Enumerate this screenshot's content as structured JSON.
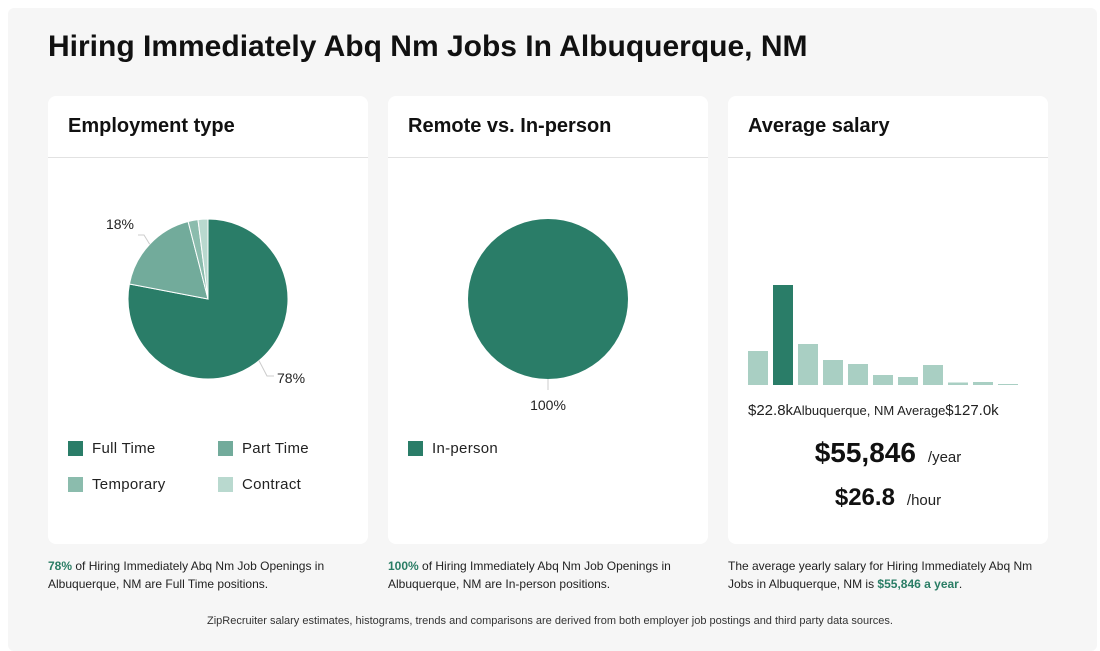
{
  "page": {
    "title": "Hiring Immediately Abq Nm Jobs In Albuquerque, NM"
  },
  "colors": {
    "primary": "#2a7d68",
    "part_time": "#72ab9b",
    "temporary": "#8bbcad",
    "contract": "#b9d9cf",
    "histogram_light": "#a9cfc3",
    "highlight_text": "#2a7d65"
  },
  "employment_card": {
    "title": "Employment type",
    "legend": [
      {
        "label": "Full Time",
        "color": "#2a7d68"
      },
      {
        "label": "Part Time",
        "color": "#72ab9b"
      },
      {
        "label": "Temporary",
        "color": "#8bbcad"
      },
      {
        "label": "Contract",
        "color": "#b9d9cf"
      }
    ],
    "caption": {
      "pct": "78%",
      "text": " of Hiring Immediately Abq Nm Job Openings in Albuquerque, NM are Full Time positions."
    }
  },
  "remote_card": {
    "title": "Remote vs. In-person",
    "legend": [
      {
        "label": "In-person",
        "color": "#2a7d68"
      }
    ],
    "caption": {
      "pct": "100%",
      "text": " of Hiring Immediately Abq Nm Job Openings in Albuquerque, NM are In-person positions."
    }
  },
  "salary_card": {
    "title": "Average salary",
    "min_label": "$22.8k",
    "mid_label": "Albuquerque, NM Average",
    "max_label": "$127.0k",
    "yearly_value": "$55,846",
    "yearly_unit": "/year",
    "hourly_value": "$26.8",
    "hourly_unit": "/hour",
    "caption": {
      "text": "The average yearly salary for Hiring Immediately Abq Nm Jobs in Albuquerque, NM is ",
      "highlight": "$55,846 a year",
      "end": "."
    }
  },
  "footer": {
    "note": "ZipRecruiter salary estimates, histograms, trends and comparisons are derived from both employer job postings and third party data sources."
  },
  "chart_data": [
    {
      "type": "pie",
      "title": "Employment type",
      "categories": [
        "Full Time",
        "Part Time",
        "Temporary",
        "Contract"
      ],
      "values": [
        78,
        18,
        2,
        2
      ],
      "labels_shown": [
        {
          "category": "Full Time",
          "text": "78%"
        },
        {
          "category": "Part Time",
          "text": "18%"
        }
      ],
      "colors": [
        "#2a7d68",
        "#72ab9b",
        "#8bbcad",
        "#b9d9cf"
      ],
      "legend": "bottom"
    },
    {
      "type": "pie",
      "title": "Remote vs. In-person",
      "categories": [
        "In-person"
      ],
      "values": [
        100
      ],
      "labels_shown": [
        {
          "category": "In-person",
          "text": "100%"
        }
      ],
      "colors": [
        "#2a7d68"
      ],
      "legend": "bottom"
    },
    {
      "type": "bar",
      "title": "Average salary",
      "x_range": [
        "$22.8k",
        "$127.0k"
      ],
      "values": [
        34,
        100,
        41,
        25,
        21,
        10,
        8,
        20,
        2.5,
        3,
        1
      ],
      "highlight_index": 1,
      "colors": {
        "highlight": "#2a7d68",
        "normal": "#a9cfc3"
      },
      "grid": false
    }
  ]
}
